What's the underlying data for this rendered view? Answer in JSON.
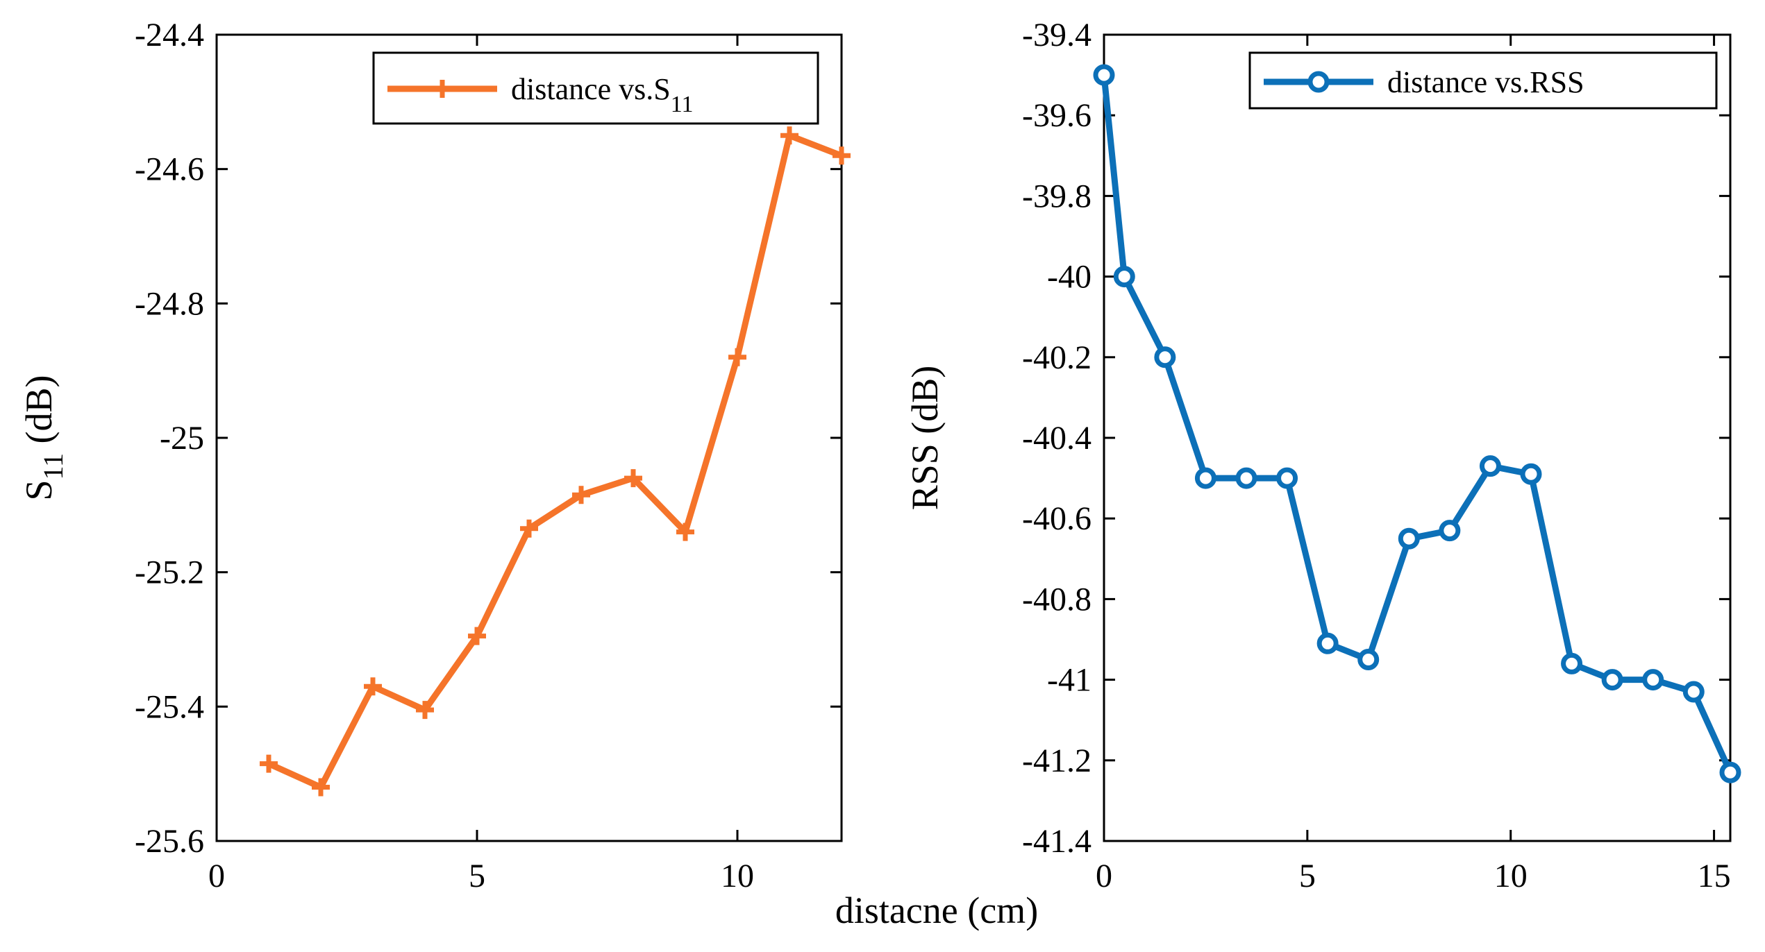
{
  "chart_data": [
    {
      "type": "line",
      "ylabel": "S",
      "ylabel_sub": "11",
      "ylabel_unit": " (dB)",
      "xlim": [
        0,
        12
      ],
      "ylim": [
        -25.6,
        -24.4
      ],
      "xticks": [
        "0",
        "5",
        "10"
      ],
      "xtick_values": [
        0,
        5,
        10
      ],
      "yticks": [
        "-24.4",
        "-24.6",
        "-24.8",
        "-25",
        "-25.2",
        "-25.4",
        "-25.6"
      ],
      "ytick_values": [
        -24.4,
        -24.6,
        -24.8,
        -25.0,
        -25.2,
        -25.4,
        -25.6
      ],
      "grid": false,
      "legend_position": "top-right",
      "series": [
        {
          "name": "distance vs.S",
          "name_sub": "11",
          "color": "#F5742A",
          "marker": "plus",
          "x": [
            1,
            2,
            3,
            4,
            5,
            6,
            7,
            8,
            9,
            10,
            11,
            12
          ],
          "y": [
            -25.485,
            -25.52,
            -25.37,
            -25.405,
            -25.295,
            -25.135,
            -25.085,
            -25.06,
            -25.14,
            -24.88,
            -24.55,
            -24.58
          ]
        }
      ]
    },
    {
      "type": "line",
      "ylabel": "RSS (dB)",
      "xlim": [
        0,
        15.4
      ],
      "ylim": [
        -41.4,
        -39.4
      ],
      "xticks": [
        "0",
        "5",
        "10",
        "15"
      ],
      "xtick_values": [
        0,
        5,
        10,
        15
      ],
      "yticks": [
        "-39.4",
        "-39.6",
        "-39.8",
        "-40",
        "-40.2",
        "-40.4",
        "-40.6",
        "-40.8",
        "-41",
        "-41.2",
        "-41.4"
      ],
      "ytick_values": [
        -39.4,
        -39.6,
        -39.8,
        -40.0,
        -40.2,
        -40.4,
        -40.6,
        -40.8,
        -41.0,
        -41.2,
        -41.4
      ],
      "grid": false,
      "legend_position": "top-right",
      "series": [
        {
          "name": "distance vs.RSS",
          "color": "#0C70B8",
          "marker": "circle",
          "x": [
            0,
            0.5,
            1.5,
            2.5,
            3.5,
            4.5,
            5.5,
            6.5,
            7.5,
            8.5,
            9.5,
            10.5,
            11.5,
            12.5,
            13.5,
            14.5,
            15.4
          ],
          "y": [
            -39.5,
            -40.0,
            -40.2,
            -40.5,
            -40.5,
            -40.5,
            -40.91,
            -40.95,
            -40.65,
            -40.63,
            -40.47,
            -40.49,
            -40.96,
            -41.0,
            -41.0,
            -41.03,
            -41.23
          ]
        }
      ]
    }
  ],
  "shared_xlabel": "distacne (cm)"
}
